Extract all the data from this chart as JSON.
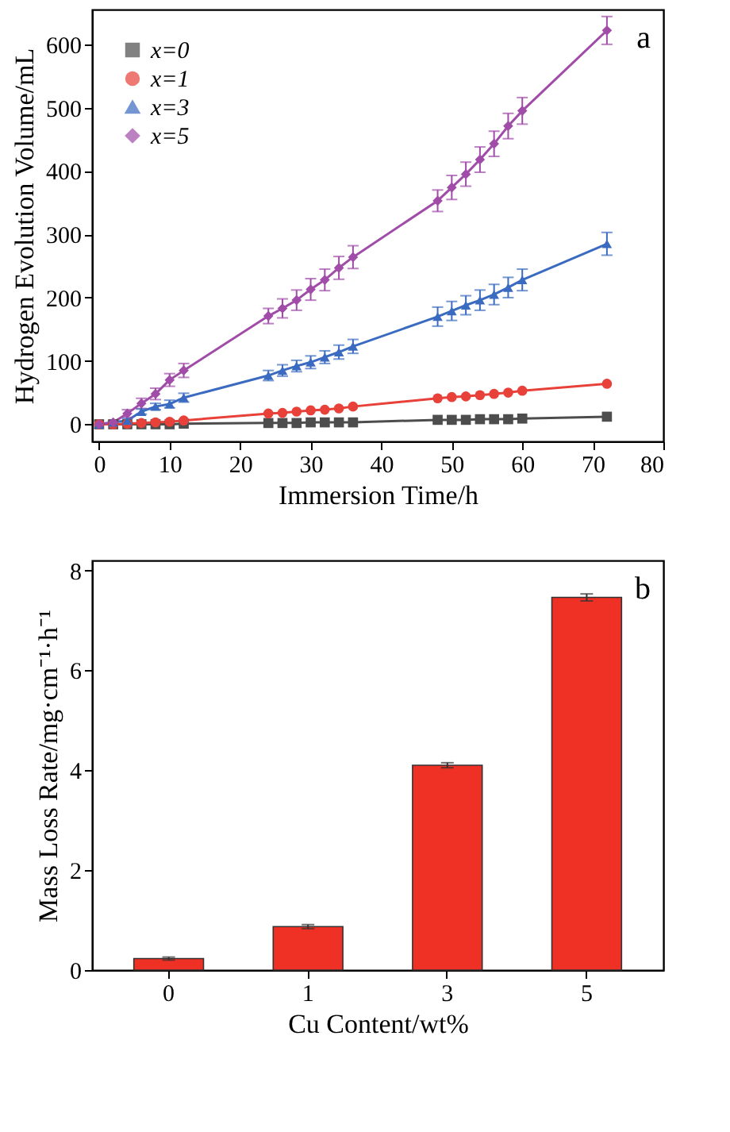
{
  "chart_data": [
    {
      "type": "line",
      "xlabel": "Immersion Time/h",
      "ylabel": "Hydrogen Evolution Volume/mL",
      "annotations": [
        "a"
      ],
      "xlim": [
        -1,
        80
      ],
      "ylim": [
        -27,
        655
      ],
      "xticks": [
        0,
        10,
        20,
        30,
        40,
        50,
        60,
        70,
        80
      ],
      "yticks": [
        0,
        100,
        200,
        300,
        400,
        500,
        600
      ],
      "legend": "top left",
      "grid": false,
      "line_style": "solid",
      "x": [
        0,
        2,
        4,
        6,
        8,
        10,
        12,
        24,
        26,
        28,
        30,
        32,
        34,
        36,
        48,
        50,
        52,
        54,
        56,
        58,
        60,
        72
      ],
      "series": [
        {
          "name": "x=0",
          "color": "#4d4d4d",
          "marker": "square",
          "values": [
            0,
            0,
            0,
            0,
            0,
            0,
            1,
            2,
            2,
            2,
            3,
            3,
            3,
            3,
            7,
            7,
            7,
            8,
            8,
            8,
            9,
            12
          ]
        },
        {
          "name": "x=1",
          "color": "#e8413a",
          "marker": "circle",
          "values": [
            0,
            0,
            1,
            2,
            3,
            4,
            6,
            17,
            18,
            20,
            22,
            23,
            25,
            28,
            41,
            43,
            44,
            46,
            48,
            50,
            53,
            64
          ]
        },
        {
          "name": "x=3",
          "color": "#3a6bc0",
          "marker": "triangle",
          "values": [
            0,
            3,
            6,
            20,
            28,
            32,
            42,
            77,
            85,
            92,
            98,
            106,
            114,
            123,
            170,
            179,
            188,
            196,
            205,
            216,
            228,
            285
          ],
          "errors": [
            null,
            null,
            3,
            4,
            5,
            6,
            7,
            8,
            9,
            9,
            10,
            10,
            11,
            11,
            15,
            15,
            15,
            16,
            16,
            16,
            17,
            18
          ]
        },
        {
          "name": "x=5",
          "color": "#a04ca8",
          "marker": "diamond",
          "values": [
            0,
            3,
            17,
            33,
            48,
            70,
            85,
            171,
            183,
            196,
            213,
            228,
            247,
            264,
            353,
            374,
            395,
            418,
            443,
            471,
            495,
            622
          ],
          "errors": [
            null,
            3,
            6,
            8,
            9,
            10,
            11,
            12,
            15,
            16,
            17,
            17,
            18,
            18,
            17,
            19,
            19,
            20,
            20,
            20,
            21,
            22
          ]
        }
      ]
    },
    {
      "type": "bar",
      "xlabel": "Cu Content/wt%",
      "ylabel": "Mass Loss Rate/mg·cm⁻¹·h⁻¹",
      "annotations": [
        "b"
      ],
      "categories": [
        "0",
        "1",
        "3",
        "5"
      ],
      "values": [
        0.23,
        0.87,
        4.1,
        7.46
      ],
      "errors": [
        0.03,
        0.04,
        0.05,
        0.07
      ],
      "color": "#ee3124",
      "ylim": [
        0,
        8.2
      ],
      "yticks": [
        0,
        2,
        4,
        6,
        8
      ],
      "grid": false
    }
  ]
}
